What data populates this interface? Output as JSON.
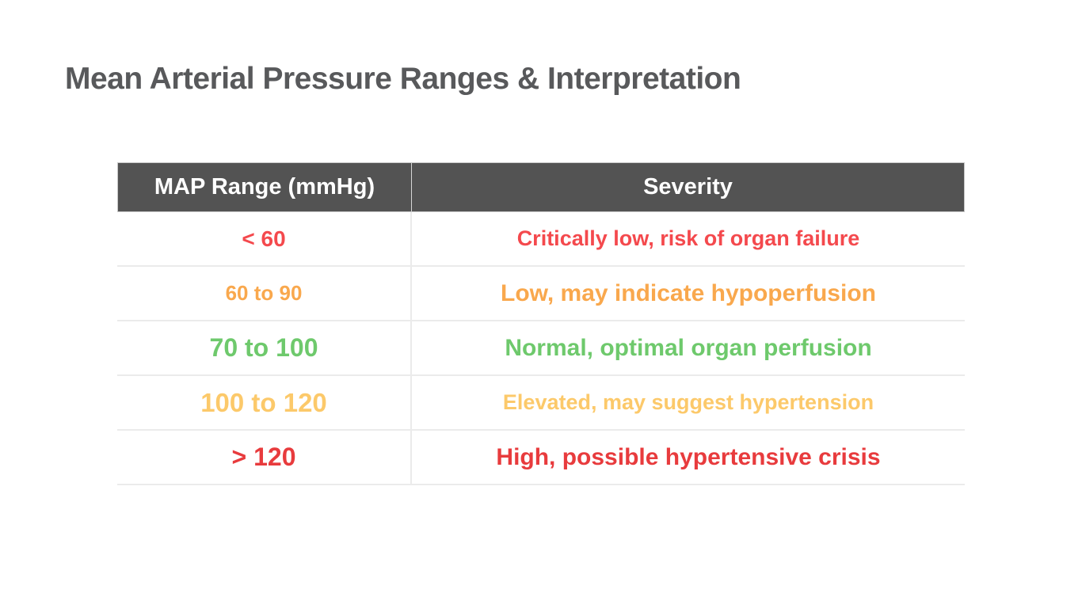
{
  "page": {
    "title": "Mean Arterial Pressure Ranges & Interpretation"
  },
  "table": {
    "columns": [
      "MAP Range (mmHg)",
      "Severity"
    ],
    "rows": [
      {
        "range": "< 60",
        "severity": "Critically low, risk of organ failure",
        "color": "#f4494d"
      },
      {
        "range": "60 to 90",
        "severity": "Low, may indicate hypoperfusion",
        "color": "#f9a84d"
      },
      {
        "range": "70 to 100",
        "severity": "Normal, optimal organ perfusion",
        "color": "#6ec96c"
      },
      {
        "range": "100 to 120",
        "severity": "Elevated, may suggest hypertension",
        "color": "#fcc96a"
      },
      {
        "range": "> 120",
        "severity": "High, possible hypertensive crisis",
        "color": "#e83b3d"
      }
    ],
    "colors": {
      "title_text": "#58595b",
      "header_bg": "#535353",
      "header_text": "#ffffff",
      "divider": "#ebebeb"
    }
  }
}
